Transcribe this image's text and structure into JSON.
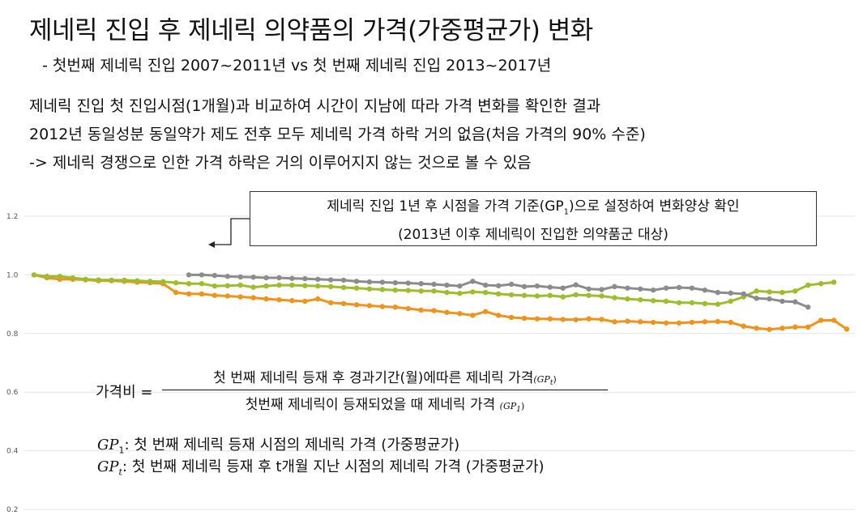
{
  "header": {
    "title": "제네릭 진입 후 제네릭 의약품의 가격(가중평균가) 변화",
    "subtitle": "- 첫번째 제네릭 진입 2007~2011년 vs 첫 번째 제네릭 진입 2013~2017년"
  },
  "body": {
    "line1": "제네릭 진입 첫 진입시점(1개월)과 비교하여 시간이 지남에 따라 가격 변화를 확인한 결과",
    "line2": "2012년 동일성분 동일약가 제도 전후 모두 제네릭 가격 하락 거의 없음(처음 가격의 90% 수준)",
    "line3": "-> 제네릭 경쟁으로 인한 가격 하락은 거의 이루어지지 않는 것으로 볼 수 있음"
  },
  "callout": {
    "line1_pre": "제네릭 진입 1년 후 시점을 가격 기준(GP",
    "line1_sub": "1",
    "line1_post": ")으로 설정하여 변화양상 확인",
    "line2": "(2013년 이후 제네릭이 진입한 의약품군 대상)"
  },
  "formula": {
    "label": "가격비 =",
    "numerator": "첫 번째 제네릭 등재 후 경과기간(월)에따른 제네릭 가격",
    "numerator_sub": "(GP",
    "numerator_sub_t": "t",
    "numerator_sub_close": ")",
    "denominator": "첫번째 제네릭이 등재되었을 때 제네릭 가격",
    "denominator_sub": "(GP",
    "denominator_sub_1": "1",
    "denominator_sub_close": ")"
  },
  "definitions": {
    "gp1_sym": "GP",
    "gp1_sub": "1",
    "gp1_text": ": 첫 번째 제네릭 등재 시점의 제네릭 가격 (가중평균가)",
    "gpt_sym": "GP",
    "gpt_sub": "t",
    "gpt_text": ": 첫 번째 제네릭 등재 후 t개월 지난 시점의 제네릭 가격 (가중평균가)"
  },
  "chart_data": {
    "type": "line",
    "ylim": [
      0.2,
      1.2
    ],
    "yticks": [
      "0.2",
      "0.4",
      "0.6",
      "0.8",
      "1.0",
      "1.2"
    ],
    "grid": true,
    "series": [
      {
        "color": "#f0931c",
        "values": [
          1.0,
          0.99,
          0.985,
          0.985,
          0.983,
          0.98,
          0.98,
          0.978,
          0.975,
          0.973,
          0.97,
          0.94,
          0.935,
          0.935,
          0.93,
          0.928,
          0.925,
          0.922,
          0.918,
          0.915,
          0.912,
          0.91,
          0.918,
          0.905,
          0.902,
          0.898,
          0.895,
          0.892,
          0.89,
          0.885,
          0.88,
          0.878,
          0.872,
          0.868,
          0.862,
          0.875,
          0.862,
          0.855,
          0.852,
          0.85,
          0.85,
          0.848,
          0.847,
          0.85,
          0.848,
          0.84,
          0.842,
          0.84,
          0.838,
          0.836,
          0.836,
          0.838,
          0.84,
          0.841,
          0.838,
          0.825,
          0.818,
          0.814,
          0.818,
          0.822,
          0.822,
          0.845,
          0.845,
          0.815
        ]
      },
      {
        "color": "#9cbd2d",
        "values": [
          1.0,
          0.995,
          0.995,
          0.99,
          0.985,
          0.983,
          0.982,
          0.982,
          0.98,
          0.978,
          0.977,
          0.973,
          0.97,
          0.97,
          0.962,
          0.963,
          0.965,
          0.958,
          0.962,
          0.965,
          0.965,
          0.963,
          0.962,
          0.96,
          0.957,
          0.955,
          0.952,
          0.95,
          0.948,
          0.947,
          0.945,
          0.945,
          0.94,
          0.937,
          0.942,
          0.94,
          0.935,
          0.932,
          0.93,
          0.928,
          0.93,
          0.925,
          0.932,
          0.93,
          0.928,
          0.922,
          0.918,
          0.915,
          0.912,
          0.91,
          0.905,
          0.905,
          0.902,
          0.9,
          0.91,
          0.925,
          0.945,
          0.942,
          0.94,
          0.945,
          0.965,
          0.97,
          0.975
        ]
      },
      {
        "color": "#8c8c8c",
        "start": 12,
        "values": [
          1.0,
          1.0,
          0.998,
          0.995,
          0.993,
          0.992,
          0.99,
          0.99,
          0.988,
          0.987,
          0.985,
          0.983,
          0.982,
          0.978,
          0.976,
          0.975,
          0.973,
          0.972,
          0.97,
          0.968,
          0.965,
          0.962,
          0.978,
          0.965,
          0.963,
          0.968,
          0.96,
          0.962,
          0.958,
          0.955,
          0.966,
          0.952,
          0.95,
          0.96,
          0.955,
          0.952,
          0.948,
          0.955,
          0.957,
          0.955,
          0.948,
          0.94,
          0.938,
          0.935,
          0.92,
          0.918,
          0.91,
          0.908,
          0.89
        ]
      }
    ]
  }
}
